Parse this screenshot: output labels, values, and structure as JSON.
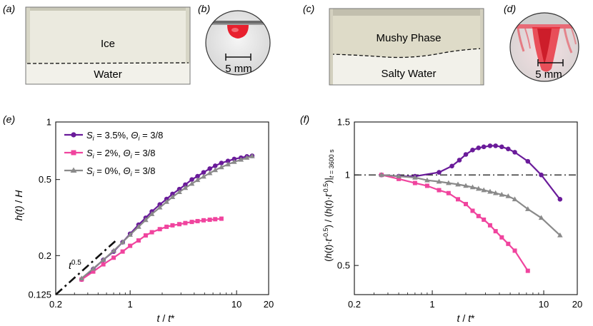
{
  "panels": {
    "a": {
      "letter": "(a)",
      "top_label": "Ice",
      "bottom_label": "Water"
    },
    "b": {
      "letter": "(b)",
      "scale_label": "5 mm"
    },
    "c": {
      "letter": "(c)",
      "top_label": "Mushy Phase",
      "bottom_label": "Salty Water"
    },
    "d": {
      "letter": "(d)",
      "scale_label": "5 mm"
    },
    "e": {
      "letter": "(e)"
    },
    "f": {
      "letter": "(f)"
    }
  },
  "colors": {
    "purple": "#6a1b9a",
    "pink": "#f0449e",
    "gray": "#8a8a8a",
    "ice_bg": "#e9e8dc",
    "dye": "#e8202e"
  },
  "chart_data": [
    {
      "panel": "e",
      "type": "line",
      "xscale": "log",
      "yscale": "log",
      "xlabel_parts": [
        "t",
        " / ",
        "t",
        "*"
      ],
      "ylabel_parts": [
        "h(t)",
        " / ",
        "H"
      ],
      "xlim": [
        0.2,
        20
      ],
      "ylim": [
        0.125,
        1
      ],
      "xticks": [
        {
          "v": 0.2,
          "t": "0.2"
        },
        {
          "v": 1,
          "t": "1"
        },
        {
          "v": 10,
          "t": "10"
        },
        {
          "v": 20,
          "t": "20"
        }
      ],
      "yticks": [
        {
          "v": 0.125,
          "t": "0.125"
        },
        {
          "v": 0.2,
          "t": "0.2"
        },
        {
          "v": 0.5,
          "t": "0.5"
        },
        {
          "v": 1,
          "t": "1"
        }
      ],
      "legend_position": "top-left",
      "series": [
        {
          "name": "purple",
          "color": "#6a1b9a",
          "marker": "circle",
          "legend": {
            "var": "S",
            "sub": "i",
            "val": " = 3.5%, ",
            "var2": "Θ",
            "sub2": "i",
            "val2": " = 3/8"
          },
          "x": [
            0.35,
            0.45,
            0.56,
            0.7,
            0.85,
            1.0,
            1.2,
            1.4,
            1.6,
            1.9,
            2.2,
            2.5,
            2.9,
            3.3,
            3.8,
            4.3,
            4.9,
            5.6,
            6.3,
            7.2,
            8.3,
            9.5,
            11,
            12.5,
            14
          ],
          "y": [
            0.15,
            0.17,
            0.19,
            0.21,
            0.235,
            0.26,
            0.29,
            0.315,
            0.34,
            0.37,
            0.395,
            0.42,
            0.445,
            0.47,
            0.5,
            0.52,
            0.545,
            0.57,
            0.59,
            0.61,
            0.625,
            0.64,
            0.65,
            0.66,
            0.665
          ]
        },
        {
          "name": "pink",
          "color": "#f0449e",
          "marker": "square",
          "legend": {
            "var": "S",
            "sub": "i",
            "val": " = 2%, ",
            "var2": "Θ",
            "sub2": "i",
            "val2": " = 3/8"
          },
          "x": [
            0.35,
            0.45,
            0.56,
            0.7,
            0.85,
            1.0,
            1.2,
            1.4,
            1.6,
            1.9,
            2.2,
            2.5,
            2.9,
            3.3,
            3.8,
            4.3,
            4.9,
            5.6,
            6.3,
            7.2
          ],
          "y": [
            0.15,
            0.165,
            0.18,
            0.195,
            0.21,
            0.225,
            0.24,
            0.255,
            0.265,
            0.275,
            0.283,
            0.288,
            0.292,
            0.296,
            0.3,
            0.303,
            0.306,
            0.308,
            0.31,
            0.312
          ]
        },
        {
          "name": "gray",
          "color": "#8a8a8a",
          "marker": "triangle",
          "legend": {
            "var": "S",
            "sub": "i",
            "val": " = 0%, ",
            "var2": "Θ",
            "sub2": "i",
            "val2": " = 3/8"
          },
          "x": [
            0.35,
            0.45,
            0.56,
            0.7,
            0.85,
            1.0,
            1.2,
            1.4,
            1.6,
            1.9,
            2.2,
            2.5,
            2.9,
            3.3,
            3.8,
            4.3,
            4.9,
            5.6,
            6.3,
            7.2,
            8.3,
            9.5,
            11,
            12.5,
            14
          ],
          "y": [
            0.152,
            0.171,
            0.19,
            0.212,
            0.235,
            0.257,
            0.283,
            0.307,
            0.33,
            0.357,
            0.382,
            0.405,
            0.43,
            0.452,
            0.475,
            0.497,
            0.518,
            0.54,
            0.56,
            0.58,
            0.6,
            0.618,
            0.635,
            0.65,
            0.662
          ]
        }
      ],
      "reference_line": {
        "label": "t",
        "label_sup": "0.5",
        "slope": 0.5,
        "x0": 0.2,
        "y0": 0.125,
        "x1": 0.75,
        "y1": 0.242,
        "style": "dash-dot"
      }
    },
    {
      "panel": "f",
      "type": "line",
      "xscale": "log",
      "yscale": "log",
      "xlabel_parts": [
        "t",
        " / ",
        "t",
        "*"
      ],
      "ylabel_text": "(h(t)·t^-0.5) / (h(t)·t^-0.5)|t = 3600 s",
      "xlim": [
        0.2,
        20
      ],
      "ylim": [
        0.4,
        1.5
      ],
      "xticks": [
        {
          "v": 0.2,
          "t": "0.2"
        },
        {
          "v": 1,
          "t": "1"
        },
        {
          "v": 10,
          "t": "10"
        },
        {
          "v": 20,
          "t": "20"
        }
      ],
      "yticks": [
        {
          "v": 0.5,
          "t": "0.5"
        },
        {
          "v": 1,
          "t": "1"
        },
        {
          "v": 1.5,
          "t": "1.5"
        }
      ],
      "horizontal_line": {
        "y": 1,
        "style": "dash-dot"
      },
      "series": [
        {
          "name": "purple",
          "color": "#6a1b9a",
          "marker": "circle",
          "x": [
            0.35,
            0.5,
            0.7,
            1.15,
            1.5,
            1.75,
            2.0,
            2.3,
            2.6,
            2.9,
            3.3,
            3.7,
            4.2,
            4.8,
            5.5,
            7.2,
            9.5,
            14
          ],
          "y": [
            1.0,
            0.99,
            0.99,
            1.02,
            1.07,
            1.12,
            1.17,
            1.21,
            1.23,
            1.24,
            1.25,
            1.25,
            1.24,
            1.22,
            1.19,
            1.11,
            1.0,
            0.83
          ]
        },
        {
          "name": "pink",
          "color": "#f0449e",
          "marker": "square",
          "x": [
            0.35,
            0.5,
            0.7,
            0.9,
            1.15,
            1.4,
            1.7,
            2.0,
            2.3,
            2.6,
            2.9,
            3.3,
            3.7,
            4.2,
            4.8,
            5.5,
            7.2
          ],
          "y": [
            1.0,
            0.97,
            0.94,
            0.92,
            0.89,
            0.87,
            0.83,
            0.8,
            0.76,
            0.73,
            0.71,
            0.68,
            0.65,
            0.62,
            0.59,
            0.56,
            0.48
          ]
        },
        {
          "name": "gray",
          "color": "#8a8a8a",
          "marker": "triangle",
          "x": [
            0.35,
            0.5,
            0.7,
            0.9,
            1.15,
            1.4,
            1.7,
            2.0,
            2.3,
            2.6,
            2.9,
            3.3,
            3.7,
            4.2,
            4.8,
            5.5,
            7.2,
            9.5,
            14
          ],
          "y": [
            1.0,
            0.99,
            0.98,
            0.96,
            0.95,
            0.94,
            0.93,
            0.92,
            0.91,
            0.9,
            0.89,
            0.88,
            0.87,
            0.86,
            0.85,
            0.83,
            0.77,
            0.72,
            0.63
          ]
        }
      ]
    }
  ]
}
